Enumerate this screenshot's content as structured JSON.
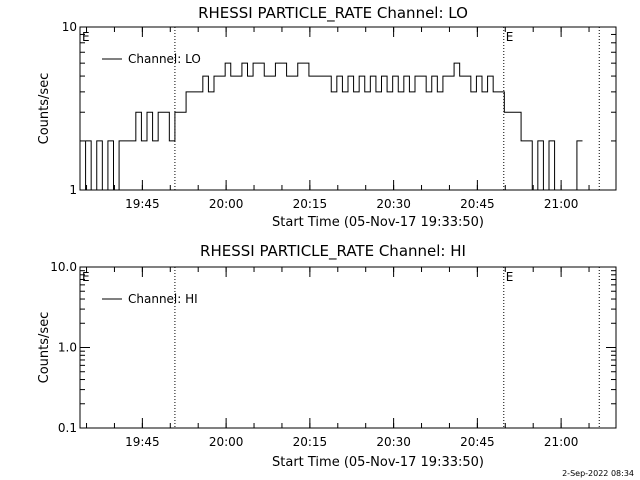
{
  "footer_date": "2-Sep-2022 08:34",
  "chart_data": [
    {
      "type": "line",
      "title": "RHESSI PARTICLE_RATE Channel: LO",
      "xlabel": "Start Time (05-Nov-17 19:33:50)",
      "ylabel": "Counts/sec",
      "yscale": "log",
      "ylim": [
        1,
        10
      ],
      "ytick_labels": [
        "1",
        "10"
      ],
      "ytick_values": [
        1,
        10
      ],
      "xlim_minutes": [
        0,
        96
      ],
      "xtick_labels": [
        "19:45",
        "20:00",
        "20:15",
        "20:30",
        "20:45",
        "21:00"
      ],
      "xtick_minutes": [
        11.17,
        26.17,
        41.17,
        56.17,
        71.17,
        86.17
      ],
      "legend": {
        "label": "Channel: LO",
        "placement": "top-left"
      },
      "vlines_minutes": [
        17,
        75.9,
        93
      ],
      "vline_labels": [
        "E",
        "E"
      ],
      "vline_label_minutes": [
        0,
        75.9
      ],
      "series": [
        {
          "x": [
            0,
            1,
            2,
            3,
            4,
            5,
            6,
            7,
            8,
            9,
            10,
            11,
            12,
            13,
            14,
            15,
            16,
            17,
            18,
            19,
            20,
            21,
            22,
            23,
            24,
            25,
            26,
            27,
            28,
            29,
            30,
            31,
            32,
            33,
            34,
            35,
            36,
            37,
            38,
            39,
            40,
            41,
            42,
            43,
            44,
            45,
            46,
            47,
            48,
            49,
            50,
            51,
            52,
            53,
            54,
            55,
            56,
            57,
            58,
            59,
            60,
            61,
            62,
            63,
            64,
            65,
            66,
            67,
            68,
            69,
            70,
            71,
            72,
            73,
            74,
            75,
            76,
            77,
            78,
            79,
            80,
            81,
            82,
            83,
            84,
            85,
            86,
            87,
            88,
            89
          ],
          "y": [
            1,
            2,
            1,
            2,
            1,
            2,
            1,
            2,
            2,
            2,
            3,
            2,
            3,
            2,
            3,
            3,
            2,
            3,
            3,
            4,
            4,
            4,
            5,
            4,
            5,
            5,
            6,
            5,
            5,
            6,
            5,
            6,
            6,
            5,
            5,
            6,
            6,
            5,
            5,
            6,
            6,
            5,
            5,
            5,
            5,
            4,
            5,
            4,
            5,
            4,
            5,
            4,
            5,
            4,
            5,
            4,
            5,
            4,
            5,
            4,
            5,
            5,
            4,
            5,
            4,
            5,
            5,
            6,
            5,
            5,
            4,
            5,
            4,
            5,
            4,
            4,
            3,
            3,
            3,
            2,
            2,
            1,
            2,
            1,
            2,
            1,
            1,
            1,
            1,
            2
          ]
        }
      ]
    },
    {
      "type": "line",
      "title": "RHESSI PARTICLE_RATE Channel: HI",
      "xlabel": "Start Time (05-Nov-17 19:33:50)",
      "ylabel": "Counts/sec",
      "yscale": "log",
      "ylim": [
        0.1,
        10
      ],
      "ytick_labels": [
        "0.1",
        "1.0",
        "10.0"
      ],
      "ytick_values": [
        0.1,
        1,
        10
      ],
      "xlim_minutes": [
        0,
        96
      ],
      "xtick_labels": [
        "19:45",
        "20:00",
        "20:15",
        "20:30",
        "20:45",
        "21:00"
      ],
      "xtick_minutes": [
        11.17,
        26.17,
        41.17,
        56.17,
        71.17,
        86.17
      ],
      "legend": {
        "label": "Channel: HI",
        "placement": "top-left"
      },
      "vlines_minutes": [
        17,
        75.9,
        93
      ],
      "vline_labels": [
        "E",
        "E"
      ],
      "vline_label_minutes": [
        0,
        75.9
      ],
      "series": []
    }
  ]
}
